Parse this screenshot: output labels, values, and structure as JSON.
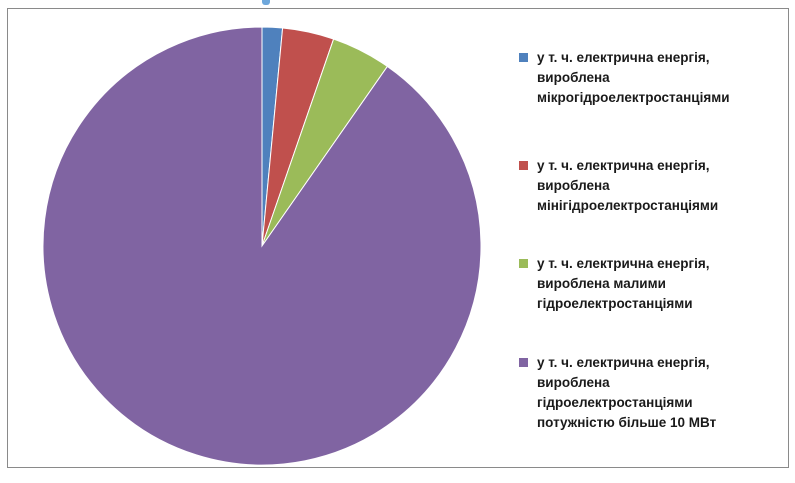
{
  "chart_data": {
    "type": "pie",
    "title": "",
    "slices": [
      {
        "label": "у т. ч. електрична енергія,\nвироблена\nмікрогідроелектростанціями",
        "value": 1.5,
        "color": "#4f81bd"
      },
      {
        "label": "у т. ч. електрична енергія,\nвироблена\nмінігідроелектростанціями",
        "value": 3.8,
        "color": "#c0504d"
      },
      {
        "label": "у т. ч. електрична енергія,\nвироблена малими\nгідроелектростанціями",
        "value": 4.4,
        "color": "#9bbb59"
      },
      {
        "label": "у т. ч. електрична енергія,\nвироблена\nгідроелектростанціями\nпотужністю більше 10 МВт",
        "value": 90.3,
        "color": "#8064a2"
      }
    ],
    "legend_position": "right"
  }
}
